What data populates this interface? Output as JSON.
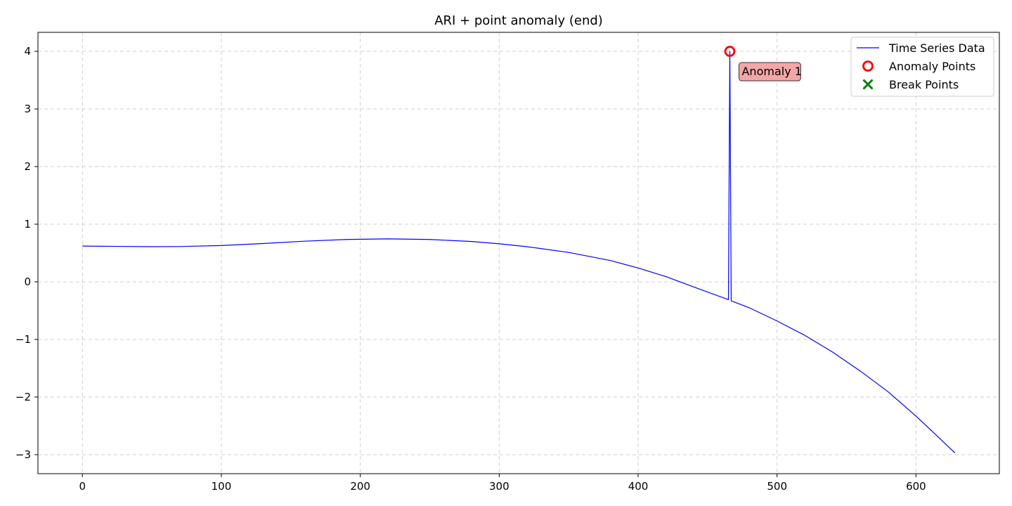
{
  "chart_data": {
    "type": "line",
    "title": "ARI + point anomaly (end)",
    "xlabel": "",
    "ylabel": "",
    "xlim": [
      -32,
      660
    ],
    "ylim": [
      -3.33,
      4.33
    ],
    "xticks": [
      0,
      100,
      200,
      300,
      400,
      500,
      600
    ],
    "yticks": [
      -3,
      -2,
      -1,
      0,
      1,
      2,
      3,
      4
    ],
    "xtick_labels": [
      "0",
      "100",
      "200",
      "300",
      "400",
      "500",
      "600"
    ],
    "ytick_labels": [
      "−3",
      "−2",
      "−1",
      "0",
      "1",
      "2",
      "3",
      "4"
    ],
    "grid": true,
    "legend_position": "top-right",
    "series": [
      {
        "name": "Time Series Data",
        "color": "#0000ff",
        "points": [
          [
            0,
            0.62
          ],
          [
            25,
            0.615
          ],
          [
            50,
            0.61
          ],
          [
            70,
            0.612
          ],
          [
            100,
            0.63
          ],
          [
            130,
            0.665
          ],
          [
            160,
            0.705
          ],
          [
            190,
            0.735
          ],
          [
            220,
            0.745
          ],
          [
            250,
            0.735
          ],
          [
            280,
            0.7
          ],
          [
            300,
            0.66
          ],
          [
            320,
            0.61
          ],
          [
            350,
            0.51
          ],
          [
            380,
            0.37
          ],
          [
            400,
            0.24
          ],
          [
            420,
            0.09
          ],
          [
            440,
            -0.09
          ],
          [
            465,
            -0.31
          ],
          [
            466,
            4.0
          ],
          [
            467,
            -0.33
          ],
          [
            480,
            -0.45
          ],
          [
            500,
            -0.68
          ],
          [
            520,
            -0.93
          ],
          [
            540,
            -1.22
          ],
          [
            560,
            -1.55
          ],
          [
            580,
            -1.91
          ],
          [
            600,
            -2.33
          ],
          [
            615,
            -2.67
          ],
          [
            628,
            -2.97
          ]
        ]
      }
    ],
    "anomalies": [
      {
        "x": 466,
        "y": 4.0,
        "label": "Anomaly 1"
      }
    ],
    "break_points": [],
    "legend": [
      {
        "label": "Time Series Data",
        "marker": "line",
        "color": "#0000ff"
      },
      {
        "label": "Anomaly Points",
        "marker": "circle",
        "color": "#ff0000"
      },
      {
        "label": "Break Points",
        "marker": "x",
        "color": "#008000"
      }
    ],
    "annotation_color": "#f4a6a6"
  }
}
